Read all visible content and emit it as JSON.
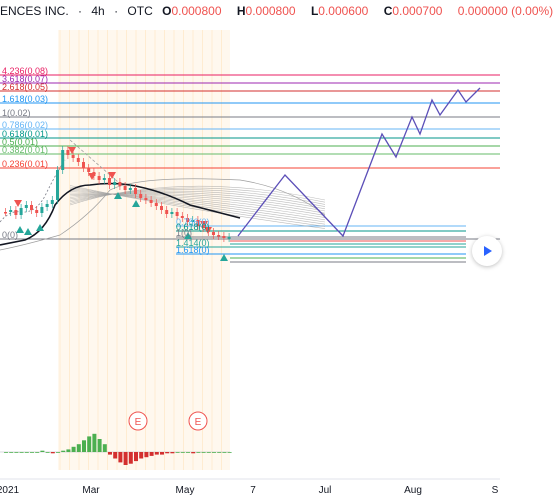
{
  "header": {
    "symbol": "ENCES INC.",
    "sep1": "·",
    "interval": "4h",
    "sep2": "·",
    "exchange": "OTC",
    "ohlc": [
      {
        "label": "O",
        "value": "0.000800"
      },
      {
        "label": "H",
        "value": "0.000800"
      },
      {
        "label": "L",
        "value": "0.000600"
      },
      {
        "label": "C",
        "value": "0.000700"
      },
      {
        "label": "",
        "value": "0.000000 (0.00%)"
      }
    ]
  },
  "chart_data": {
    "type": "line",
    "title": "",
    "xlabel": "",
    "ylabel": "",
    "x_tick_labels": [
      "2021",
      "Mar",
      "May",
      "7",
      "Jul",
      "Aug",
      "S"
    ],
    "fib_levels": [
      {
        "label": "4.236(0.08)",
        "color": "#e91e63"
      },
      {
        "label": "3.618(0.07)",
        "color": "#9c27b0"
      },
      {
        "label": "2.618(0.05)",
        "color": "#d32f2f"
      },
      {
        "label": "1.618(0.03)",
        "color": "#2196f3"
      },
      {
        "label": "1(0.02)",
        "color": "#787b86"
      },
      {
        "label": "0.786(0.02)",
        "color": "#64b5f6"
      },
      {
        "label": "0.618(0.01)",
        "color": "#009688"
      },
      {
        "label": "0.5(0.01)",
        "color": "#4caf50"
      },
      {
        "label": "0.382(0.01)",
        "color": "#66bb6a"
      },
      {
        "label": "0.236(0.01)",
        "color": "#f44336"
      },
      {
        "label": "0(0)",
        "color": "#787b86"
      }
    ],
    "fib_levels_small": [
      {
        "label": "0.786(0)",
        "color": "#64b5f6"
      },
      {
        "label": "0.618(0)",
        "color": "#009688"
      },
      {
        "label": "1(0)",
        "color": "#787b86"
      },
      {
        "label": "1.414(0)",
        "color": "#26a69a"
      },
      {
        "label": "1.618(0)",
        "color": "#2196f3"
      }
    ],
    "earnings_markers": [
      "E",
      "E"
    ],
    "colors": {
      "up": "#26a69a",
      "down": "#ef5350",
      "projection": "#5c4fb8",
      "ma": "#131722",
      "hist_up": "#4caf50",
      "hist_down": "#d32f2f"
    }
  },
  "icons": {
    "play": "play-icon"
  }
}
